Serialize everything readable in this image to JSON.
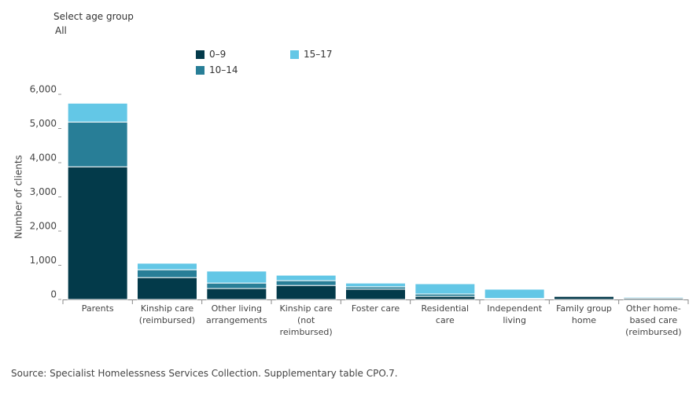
{
  "filter": {
    "label": "Select age group",
    "value": "All"
  },
  "chart_data": {
    "type": "stacked_bar",
    "y_label": "Number of clients",
    "categories": [
      "Parents",
      "Kinship care (reimbursed)",
      "Other living arrangements",
      "Kinship care (not reimbursed)",
      "Foster care",
      "Residential care",
      "Independent living",
      "Family group home",
      "Other home-based care (reimbursed)"
    ],
    "series": [
      {
        "name": "0–9",
        "color": "#033a4a",
        "values": [
          3880,
          640,
          320,
          410,
          300,
          90,
          10,
          90,
          40
        ]
      },
      {
        "name": "10–14",
        "color": "#287e97",
        "values": [
          1310,
          230,
          160,
          140,
          70,
          70,
          20,
          0,
          10
        ]
      },
      {
        "name": "15–17",
        "color": "#63c7e6",
        "values": [
          550,
          190,
          350,
          160,
          110,
          300,
          270,
          5,
          30
        ]
      }
    ],
    "ylim": [
      0,
      6000
    ],
    "yticks": [
      0,
      {
        "value": 1000,
        "label": "1,000"
      },
      {
        "value": 2000,
        "label": "2,000"
      },
      {
        "value": 3000,
        "label": "3,000"
      },
      {
        "value": 4000,
        "label": "4,000"
      },
      {
        "value": 5000,
        "label": "5,000"
      },
      {
        "value": 6000,
        "label": "6,000"
      }
    ]
  },
  "source": "Source: Specialist Homelessness Services Collection. Supplementary table CPO.7."
}
